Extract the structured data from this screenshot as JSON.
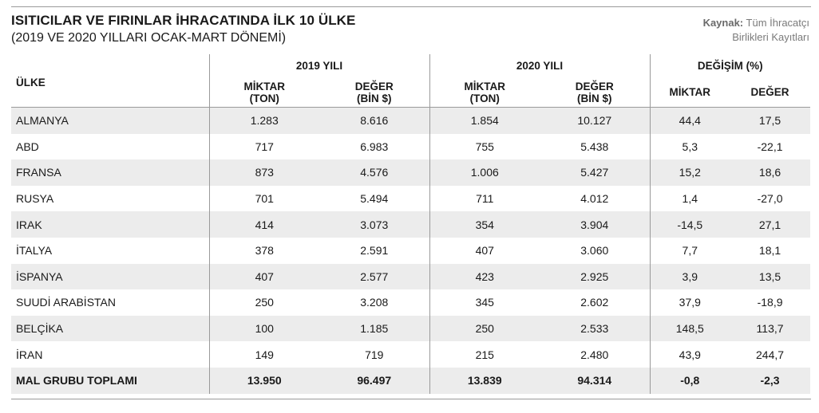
{
  "title": "ISITICILAR VE FIRINLAR İHRACATINDA İLK 10 ÜLKE",
  "subtitle": "(2019 VE 2020 YILLARI OCAK-MART DÖNEMİ)",
  "source": {
    "label": "Kaynak:",
    "line1": "Tüm İhracatçı",
    "line2": "Birlikleri Kayıtları"
  },
  "header": {
    "country": "ÜLKE",
    "group_2019": "2019 YILI",
    "group_2020": "2020 YILI",
    "group_change": "DEĞİŞİM (%)",
    "miktar_l1": "MİKTAR",
    "miktar_l2": "(TON)",
    "deger_l1": "DEĞER",
    "deger_l2": "(BİN $)",
    "change_miktar": "MİKTAR",
    "change_deger": "DEĞER"
  },
  "rows": [
    [
      "ALMANYA",
      "1.283",
      "8.616",
      "1.854",
      "10.127",
      "44,4",
      "17,5"
    ],
    [
      "ABD",
      "717",
      "6.983",
      "755",
      "5.438",
      "5,3",
      "-22,1"
    ],
    [
      "FRANSA",
      "873",
      "4.576",
      "1.006",
      "5.427",
      "15,2",
      "18,6"
    ],
    [
      "RUSYA",
      "701",
      "5.494",
      "711",
      "4.012",
      "1,4",
      "-27,0"
    ],
    [
      "IRAK",
      "414",
      "3.073",
      "354",
      "3.904",
      "-14,5",
      "27,1"
    ],
    [
      "İTALYA",
      "378",
      "2.591",
      "407",
      "3.060",
      "7,7",
      "18,1"
    ],
    [
      "İSPANYA",
      "407",
      "2.577",
      "423",
      "2.925",
      "3,9",
      "13,5"
    ],
    [
      "SUUDİ ARABİSTAN",
      "250",
      "3.208",
      "345",
      "2.602",
      "37,9",
      "-18,9"
    ],
    [
      "BELÇİKA",
      "100",
      "1.185",
      "250",
      "2.533",
      "148,5",
      "113,7"
    ],
    [
      "İRAN",
      "149",
      "719",
      "215",
      "2.480",
      "43,9",
      "244,7"
    ]
  ],
  "total": [
    "MAL GRUBU TOPLAMI",
    "13.950",
    "96.497",
    "13.839",
    "94.314",
    "-0,8",
    "-2,3"
  ]
}
